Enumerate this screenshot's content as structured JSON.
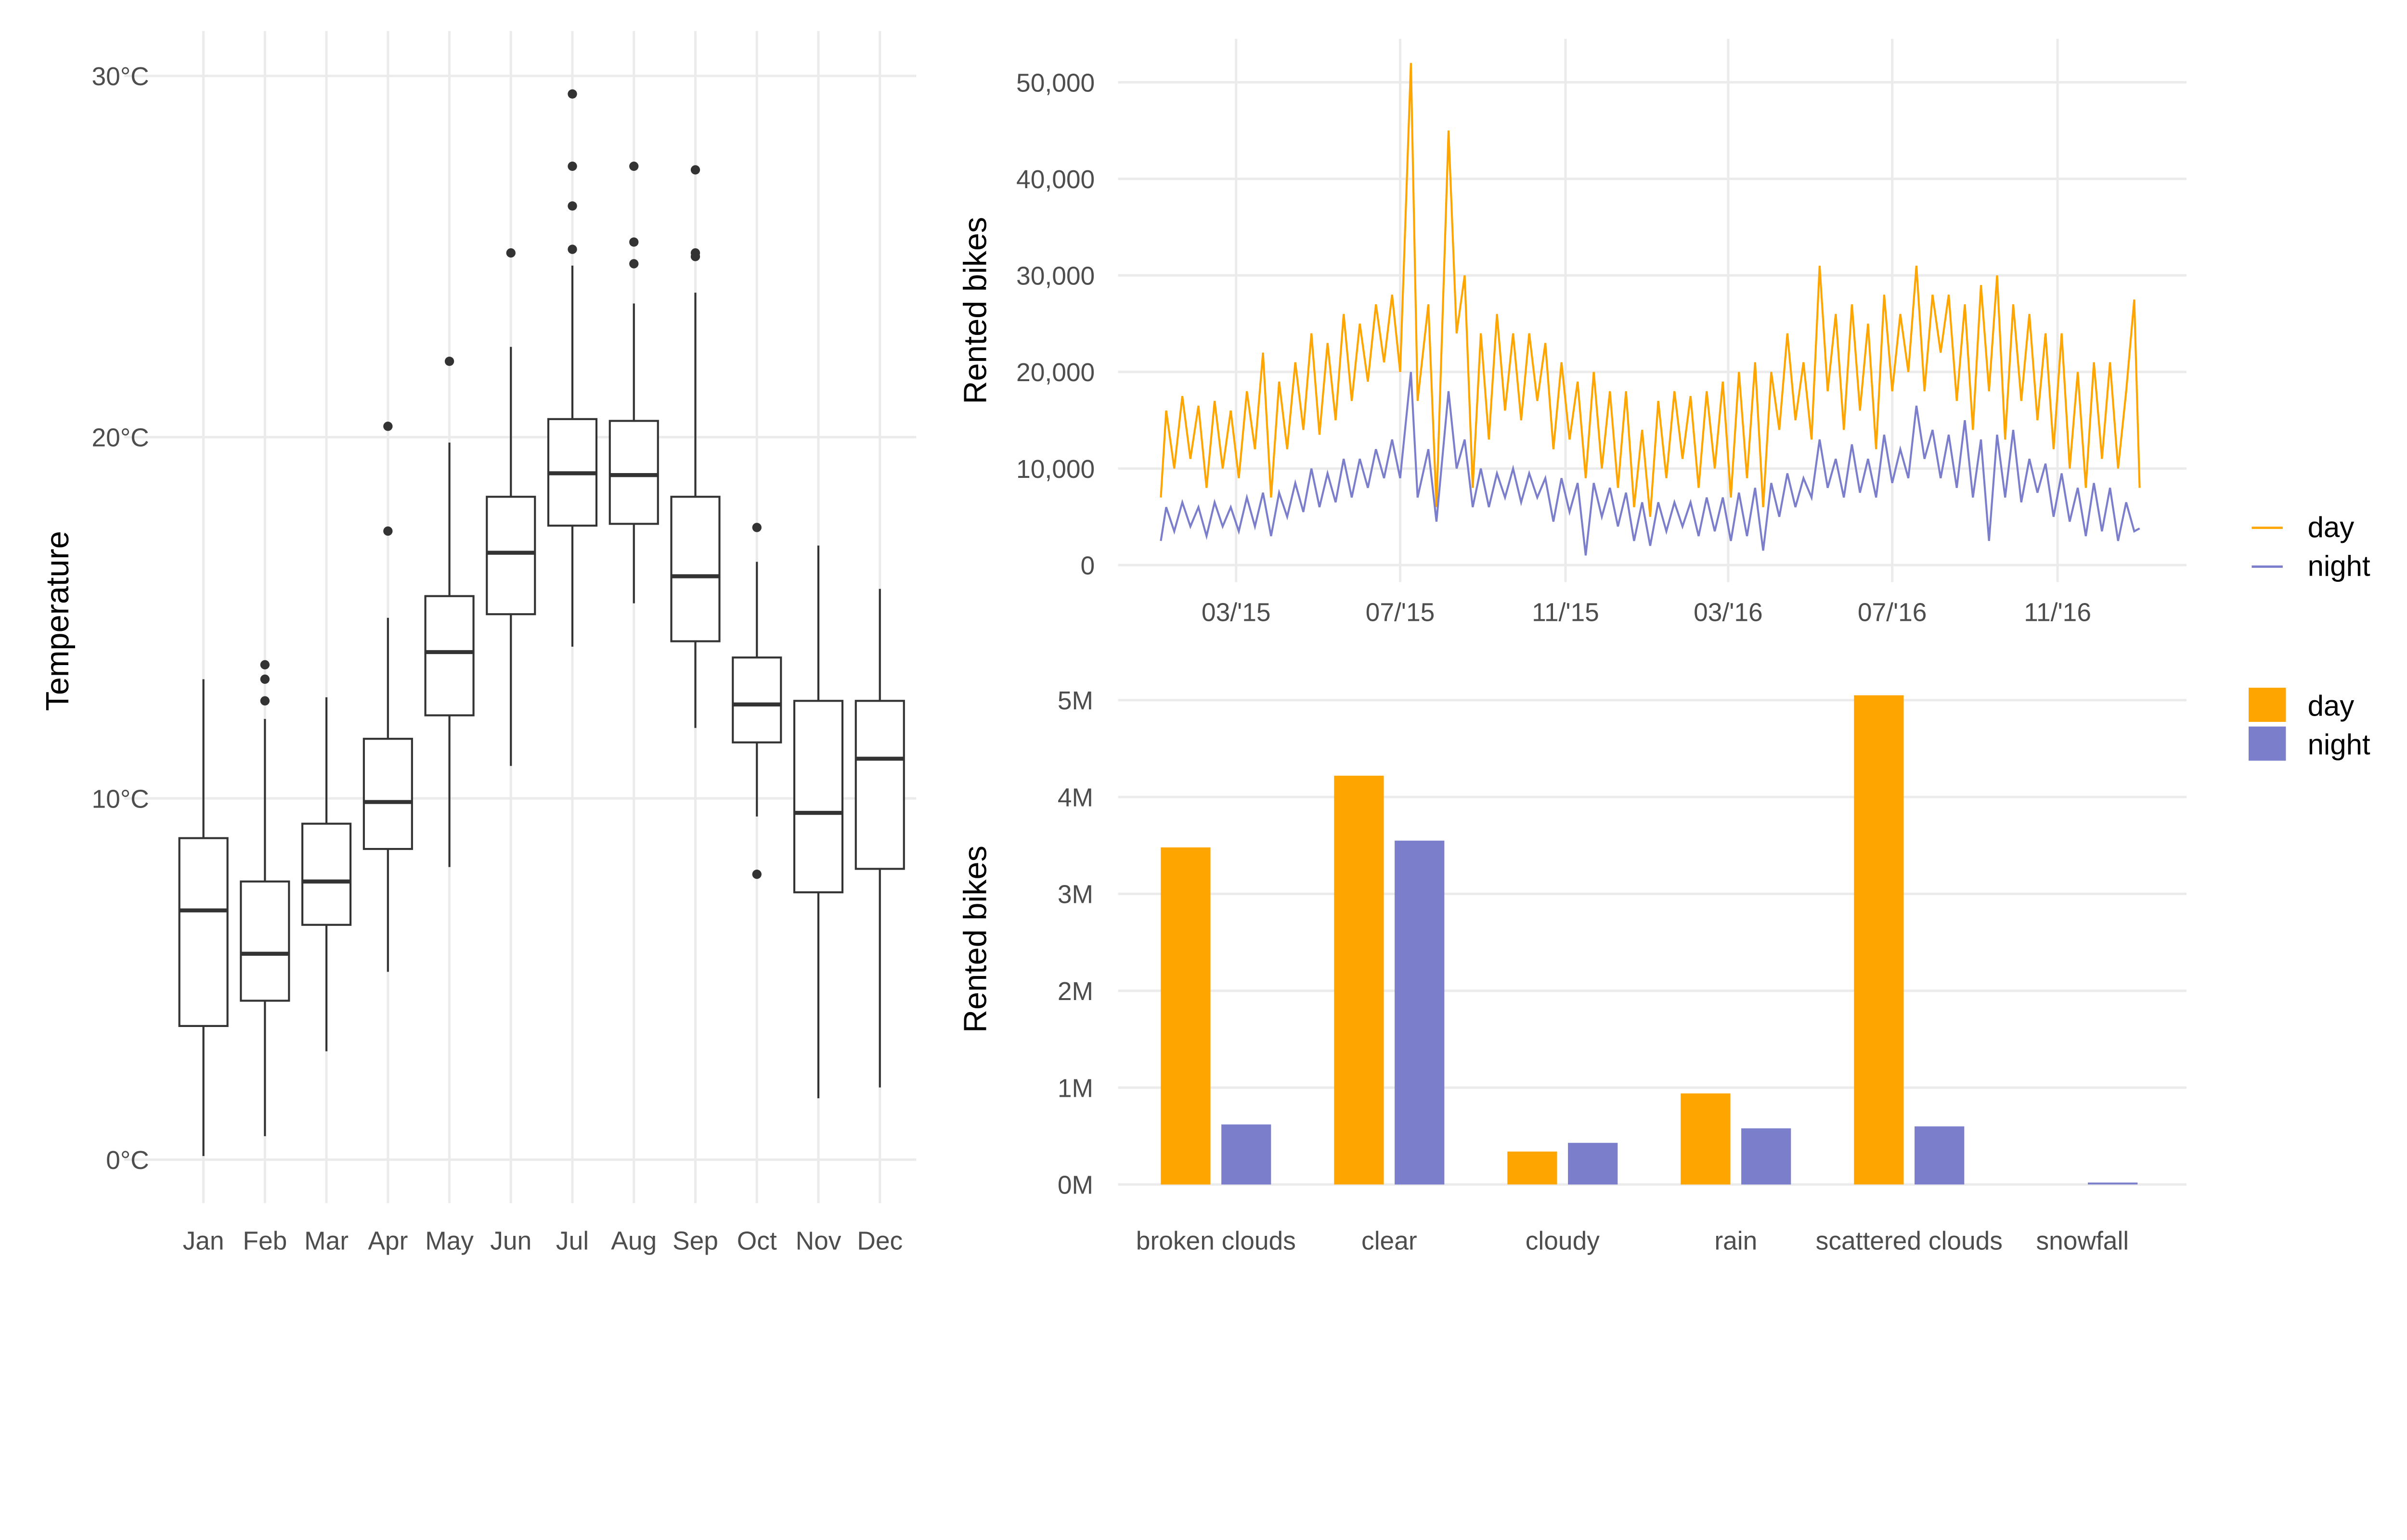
{
  "chart_data": [
    {
      "type": "box",
      "xlabel": "",
      "ylabel": "Temperature",
      "ylim": [
        -1,
        30.5
      ],
      "yticks": [
        0,
        10,
        20,
        30
      ],
      "ytick_labels": [
        "0°C",
        "10°C",
        "20°C",
        "30°C"
      ],
      "grid": true,
      "categories": [
        "Jan",
        "Feb",
        "Mar",
        "Apr",
        "May",
        "Jun",
        "Jul",
        "Aug",
        "Sep",
        "Oct",
        "Nov",
        "Dec"
      ],
      "boxes": [
        {
          "low": 0.1,
          "q1": 3.7,
          "median": 6.9,
          "q3": 8.9,
          "high": 13.3,
          "outliers": []
        },
        {
          "low": 0.65,
          "q1": 4.4,
          "median": 5.7,
          "q3": 7.7,
          "high": 12.2,
          "outliers": [
            12.7,
            13.3,
            13.7
          ]
        },
        {
          "low": 3.0,
          "q1": 6.5,
          "median": 7.7,
          "q3": 9.3,
          "high": 12.8,
          "outliers": []
        },
        {
          "low": 5.2,
          "q1": 8.6,
          "median": 9.9,
          "q3": 11.65,
          "high": 15.0,
          "outliers": [
            17.4,
            20.3
          ]
        },
        {
          "low": 8.1,
          "q1": 12.3,
          "median": 14.05,
          "q3": 15.6,
          "high": 19.85,
          "outliers": [
            22.1
          ]
        },
        {
          "low": 10.9,
          "q1": 15.1,
          "median": 16.8,
          "q3": 18.35,
          "high": 22.5,
          "outliers": [
            25.1
          ]
        },
        {
          "low": 14.2,
          "q1": 17.55,
          "median": 19.0,
          "q3": 20.5,
          "high": 24.75,
          "outliers": [
            25.2,
            26.4,
            27.5,
            29.5
          ]
        },
        {
          "low": 15.4,
          "q1": 17.6,
          "median": 18.95,
          "q3": 20.45,
          "high": 23.7,
          "outliers": [
            24.8,
            25.4,
            27.5
          ]
        },
        {
          "low": 11.95,
          "q1": 14.35,
          "median": 16.15,
          "q3": 18.35,
          "high": 24.0,
          "outliers": [
            25.0,
            25.1,
            27.4
          ]
        },
        {
          "low": 9.5,
          "q1": 11.55,
          "median": 12.6,
          "q3": 13.9,
          "high": 16.55,
          "outliers": [
            7.9,
            17.5
          ]
        },
        {
          "low": 1.7,
          "q1": 7.4,
          "median": 9.6,
          "q3": 12.7,
          "high": 17.0,
          "outliers": []
        },
        {
          "low": 2.0,
          "q1": 8.05,
          "median": 11.1,
          "q3": 12.7,
          "high": 15.8,
          "outliers": []
        }
      ]
    },
    {
      "type": "line",
      "xlabel": "",
      "ylabel": "Rented bikes",
      "ylim": [
        -2500,
        55000
      ],
      "yticks": [
        0,
        10000,
        20000,
        30000,
        40000,
        50000
      ],
      "ytick_labels": [
        "0",
        "10,000",
        "20,000",
        "30,000",
        "40,000",
        "50,000"
      ],
      "xticks": [
        "2015-03-01",
        "2015-07-01",
        "2015-11-01",
        "2016-03-01",
        "2016-07-01",
        "2016-11-01"
      ],
      "xtick_labels": [
        "03/'15",
        "07/'15",
        "11/'15",
        "03/'16",
        "07/'16",
        "11/'16"
      ],
      "grid": true,
      "legend": "right",
      "x": [
        "2015-01-04",
        "2015-01-08",
        "2015-01-14",
        "2015-01-20",
        "2015-01-26",
        "2015-02-01",
        "2015-02-07",
        "2015-02-13",
        "2015-02-19",
        "2015-02-25",
        "2015-03-03",
        "2015-03-09",
        "2015-03-15",
        "2015-03-21",
        "2015-03-27",
        "2015-04-02",
        "2015-04-08",
        "2015-04-14",
        "2015-04-20",
        "2015-04-26",
        "2015-05-02",
        "2015-05-08",
        "2015-05-14",
        "2015-05-20",
        "2015-05-26",
        "2015-06-01",
        "2015-06-07",
        "2015-06-13",
        "2015-06-19",
        "2015-06-25",
        "2015-07-01",
        "2015-07-09",
        "2015-07-14",
        "2015-07-22",
        "2015-07-28",
        "2015-08-06",
        "2015-08-12",
        "2015-08-18",
        "2015-08-24",
        "2015-08-30",
        "2015-09-05",
        "2015-09-11",
        "2015-09-17",
        "2015-09-23",
        "2015-09-29",
        "2015-10-05",
        "2015-10-11",
        "2015-10-17",
        "2015-10-23",
        "2015-10-29",
        "2015-11-04",
        "2015-11-10",
        "2015-11-16",
        "2015-11-22",
        "2015-11-28",
        "2015-12-04",
        "2015-12-10",
        "2015-12-16",
        "2015-12-22",
        "2015-12-28",
        "2016-01-03",
        "2016-01-09",
        "2016-01-15",
        "2016-01-21",
        "2016-01-27",
        "2016-02-02",
        "2016-02-08",
        "2016-02-14",
        "2016-02-20",
        "2016-02-26",
        "2016-03-03",
        "2016-03-09",
        "2016-03-15",
        "2016-03-21",
        "2016-03-27",
        "2016-04-02",
        "2016-04-08",
        "2016-04-14",
        "2016-04-20",
        "2016-04-26",
        "2016-05-02",
        "2016-05-08",
        "2016-05-14",
        "2016-05-20",
        "2016-05-26",
        "2016-06-01",
        "2016-06-07",
        "2016-06-13",
        "2016-06-19",
        "2016-06-25",
        "2016-07-01",
        "2016-07-07",
        "2016-07-13",
        "2016-07-19",
        "2016-07-25",
        "2016-07-31",
        "2016-08-06",
        "2016-08-12",
        "2016-08-18",
        "2016-08-24",
        "2016-08-30",
        "2016-09-05",
        "2016-09-11",
        "2016-09-17",
        "2016-09-23",
        "2016-09-29",
        "2016-10-05",
        "2016-10-11",
        "2016-10-17",
        "2016-10-23",
        "2016-10-29",
        "2016-11-04",
        "2016-11-10",
        "2016-11-16",
        "2016-11-22",
        "2016-11-28",
        "2016-12-04",
        "2016-12-10",
        "2016-12-16",
        "2016-12-22",
        "2016-12-28",
        "2017-01-01"
      ],
      "series": [
        {
          "name": "day",
          "color": "#FFA500",
          "values": [
            7000,
            16000,
            10000,
            17500,
            11000,
            16500,
            8000,
            17000,
            10000,
            16000,
            9000,
            18000,
            12000,
            22000,
            7000,
            19000,
            12000,
            21000,
            14000,
            24000,
            13500,
            23000,
            15000,
            26000,
            17000,
            25000,
            19000,
            27000,
            21000,
            28000,
            20000,
            52000,
            17000,
            27000,
            6000,
            45000,
            24000,
            30000,
            8000,
            24000,
            13000,
            26000,
            16000,
            24000,
            15000,
            24000,
            17000,
            23000,
            12000,
            21000,
            13000,
            19000,
            9000,
            20000,
            10000,
            18000,
            8000,
            18000,
            6000,
            14000,
            5000,
            17000,
            9000,
            18000,
            11000,
            17500,
            8000,
            18000,
            10000,
            19000,
            7000,
            20000,
            9000,
            21000,
            6000,
            20000,
            14000,
            24000,
            15000,
            21000,
            13000,
            31000,
            18000,
            26000,
            14000,
            27000,
            16000,
            25000,
            12000,
            28000,
            18000,
            26000,
            20000,
            31000,
            18000,
            28000,
            22000,
            28000,
            17000,
            27000,
            14000,
            29000,
            18000,
            30000,
            13000,
            27000,
            17000,
            26000,
            15000,
            24000,
            12000,
            24000,
            10000,
            20000,
            8000,
            21000,
            11000,
            21000,
            10000,
            18000,
            27500,
            8000
          ]
        },
        {
          "name": "night",
          "color": "#7B7FCB",
          "values": [
            2500,
            6000,
            3500,
            6500,
            4000,
            6000,
            3000,
            6500,
            4000,
            6000,
            3500,
            7000,
            4000,
            7500,
            3000,
            7500,
            5000,
            8500,
            5500,
            10000,
            6000,
            9500,
            6500,
            11000,
            7000,
            11000,
            8000,
            12000,
            9000,
            13000,
            9000,
            20000,
            7000,
            12000,
            4500,
            18000,
            10000,
            13000,
            6000,
            10000,
            6000,
            9500,
            7000,
            10000,
            6500,
            9500,
            7000,
            9000,
            4500,
            9000,
            5500,
            8500,
            1000,
            8500,
            5000,
            8000,
            4000,
            7500,
            2500,
            6500,
            2000,
            6500,
            3500,
            6500,
            4000,
            6500,
            3000,
            7000,
            3500,
            7000,
            2500,
            7500,
            3000,
            8000,
            1500,
            8500,
            5000,
            9500,
            6000,
            9000,
            7000,
            13000,
            8000,
            11000,
            7000,
            12500,
            7500,
            11000,
            7000,
            13500,
            8500,
            12000,
            9000,
            16500,
            11000,
            14000,
            9000,
            13500,
            8000,
            15000,
            7000,
            13000,
            2500,
            13500,
            7000,
            14000,
            6500,
            11000,
            7500,
            10500,
            5000,
            9500,
            4500,
            8000,
            3000,
            8500,
            3500,
            8000,
            2500,
            6500,
            3500,
            3800
          ]
        }
      ]
    },
    {
      "type": "bar",
      "xlabel": "",
      "ylabel": "Rented bikes",
      "ylim": [
        -0.2,
        5.3
      ],
      "yticks": [
        0,
        1,
        2,
        3,
        4,
        5
      ],
      "ytick_labels": [
        "0M",
        "1M",
        "2M",
        "3M",
        "4M",
        "5M"
      ],
      "value_unit": "millions",
      "grid": true,
      "legend": "right",
      "categories": [
        "broken clouds",
        "clear",
        "cloudy",
        "rain",
        "scattered clouds",
        "snowfall"
      ],
      "series": [
        {
          "name": "day",
          "color": "#FFA500",
          "values": [
            3.48,
            4.22,
            0.34,
            0.94,
            5.05,
            0.0
          ]
        },
        {
          "name": "night",
          "color": "#7B7FCB",
          "values": [
            0.62,
            3.55,
            0.43,
            0.58,
            0.6,
            0.02
          ]
        }
      ]
    }
  ]
}
